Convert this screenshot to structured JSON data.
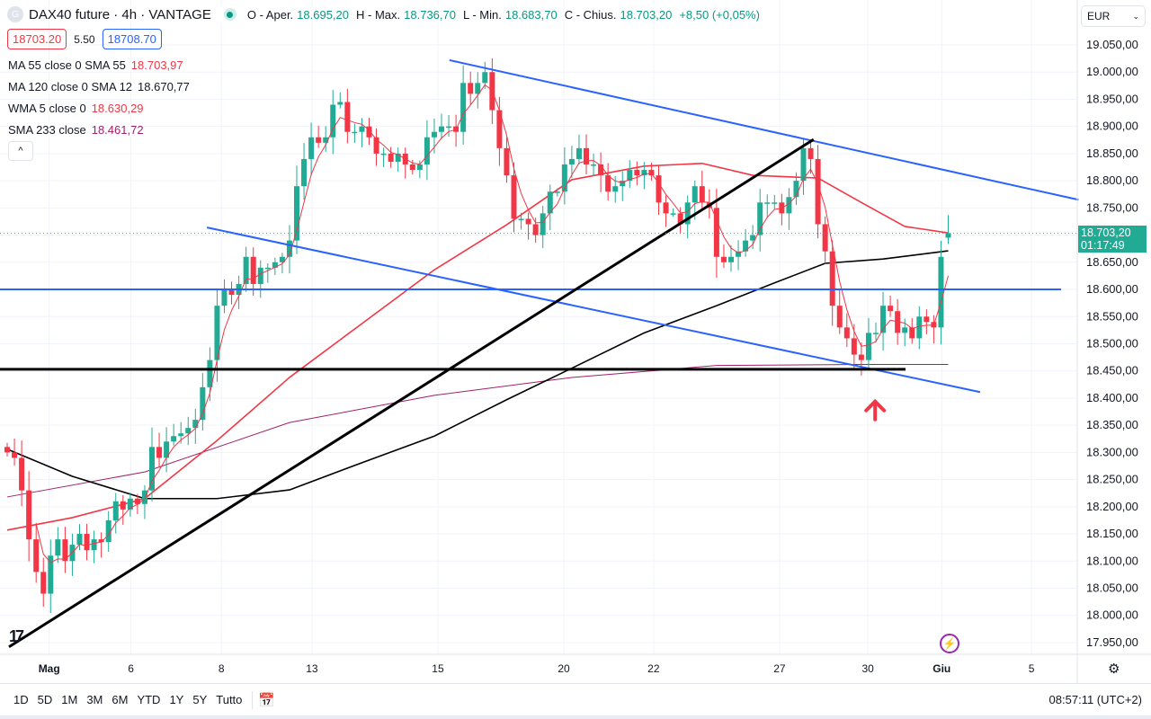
{
  "header": {
    "symbol_icon": "G",
    "title": "DAX40 future · 4h · VANTAGE",
    "status": "market-open-dot",
    "o_label": "O - Aper.",
    "o": "18.695,20",
    "h_label": "H - Max.",
    "h": "18.736,70",
    "l_label": "L - Min.",
    "l": "18.683,70",
    "c_label": "C - Chius.",
    "c": "18.703,20",
    "change": "+8,50 (+0,05%)"
  },
  "quote": {
    "bid": "18703.20",
    "spread": "5.50",
    "ask": "18708.70"
  },
  "legend": [
    {
      "label": "MA 55 close 0 SMA 55",
      "value": "18.703,97",
      "color": "#f23645"
    },
    {
      "label": "MA 120 close 0 SMA 12",
      "value": "18.670,77",
      "color": "#131722"
    },
    {
      "label": "WMA 5 close 0",
      "value": "18.630,29",
      "color": "#f23645"
    },
    {
      "label": "SMA 233 close",
      "value": "18.461,72",
      "color": "#a0206a"
    }
  ],
  "collapse_icon": "chevron-up",
  "currency": "EUR",
  "price_label": {
    "price": "18.703,20",
    "countdown": "01:17:49"
  },
  "timeframes": [
    "1D",
    "5D",
    "1M",
    "3M",
    "6M",
    "YTD",
    "1Y",
    "5Y",
    "Tutto"
  ],
  "clock": "08:57:11 (UTC+2)",
  "colors": {
    "up": "#22ab94",
    "down": "#f23645",
    "ma55": "#f23645",
    "ma120": "#000000",
    "wma5": "#f23645",
    "sma233": "#a0206a",
    "trend_blue": "#2962ff",
    "trend_black": "#000000"
  },
  "chart_data": {
    "type": "candlestick",
    "ylim": [
      17925,
      19075
    ],
    "y_ticks": [
      "19.050,00",
      "19.000,00",
      "18.950,00",
      "18.900,00",
      "18.850,00",
      "18.800,00",
      "18.750,00",
      "18.650,00",
      "18.600,00",
      "18.550,00",
      "18.500,00",
      "18.450,00",
      "18.400,00",
      "18.350,00",
      "18.300,00",
      "18.250,00",
      "18.200,00",
      "18.150,00",
      "18.100,00",
      "18.050,00",
      "18.000,00",
      "17.950,00"
    ],
    "x_ticks": [
      {
        "label": "Mag",
        "bar": 5.8
      },
      {
        "label": "6",
        "bar": 17.1
      },
      {
        "label": "8",
        "bar": 29.6
      },
      {
        "label": "13",
        "bar": 42.1
      },
      {
        "label": "15",
        "bar": 59.5
      },
      {
        "label": "20",
        "bar": 76.9
      },
      {
        "label": "22",
        "bar": 89.3
      },
      {
        "label": "27",
        "bar": 106.7
      },
      {
        "label": "30",
        "bar": 118.9
      },
      {
        "label": "Giu",
        "bar": 129.1
      },
      {
        "label": "5",
        "bar": 141.5
      }
    ],
    "closes": [
      18300,
      18290,
      18230,
      18140,
      18080,
      18040,
      18110,
      18140,
      18100,
      18130,
      18150,
      18120,
      18140,
      18135,
      18175,
      18210,
      18195,
      18215,
      18205,
      18230,
      18310,
      18290,
      18320,
      18330,
      18335,
      18345,
      18360,
      18420,
      18470,
      18570,
      18600,
      18590,
      18610,
      18660,
      18610,
      18640,
      18640,
      18650,
      18660,
      18690,
      18790,
      18840,
      18880,
      18870,
      18880,
      18940,
      18945,
      18890,
      18890,
      18900,
      18880,
      18850,
      18850,
      18835,
      18850,
      18830,
      18820,
      18830,
      18880,
      18890,
      18900,
      18900,
      18890,
      18980,
      18960,
      18980,
      19000,
      18930,
      18860,
      18810,
      18730,
      18730,
      18720,
      18700,
      18740,
      18780,
      18780,
      18830,
      18840,
      18860,
      18830,
      18830,
      18810,
      18780,
      18790,
      18800,
      18820,
      18810,
      18820,
      18810,
      18760,
      18740,
      18740,
      18720,
      18760,
      18790,
      18760,
      18750,
      18660,
      18650,
      18660,
      18670,
      18690,
      18700,
      18760,
      18760,
      18760,
      18740,
      18770,
      18800,
      18860,
      18840,
      18720,
      18670,
      18570,
      18530,
      18510,
      18480,
      18470,
      18520,
      18520,
      18570,
      18560,
      18520,
      18530,
      18510,
      18550,
      18540,
      18530,
      18660,
      18703.2
    ],
    "last_bar": {
      "open": 18695.2,
      "high": 18736.7,
      "low": 18683.7,
      "close": 18703.2
    },
    "indicators": {
      "ma55": [
        [
          0,
          18157
        ],
        [
          9,
          18180
        ],
        [
          19,
          18215
        ],
        [
          29,
          18322
        ],
        [
          39,
          18438
        ],
        [
          49,
          18537
        ],
        [
          59,
          18636
        ],
        [
          69,
          18719
        ],
        [
          78,
          18802
        ],
        [
          88,
          18827
        ],
        [
          96,
          18832
        ],
        [
          103,
          18810
        ],
        [
          112,
          18805
        ],
        [
          118,
          18760
        ],
        [
          124,
          18716
        ],
        [
          130,
          18704
        ]
      ],
      "ma120": [
        [
          0,
          18306
        ],
        [
          9,
          18256
        ],
        [
          19,
          18215
        ],
        [
          29,
          18215
        ],
        [
          39,
          18231
        ],
        [
          49,
          18281
        ],
        [
          59,
          18330
        ],
        [
          69,
          18397
        ],
        [
          78,
          18455
        ],
        [
          88,
          18520
        ],
        [
          98,
          18570
        ],
        [
          106,
          18612
        ],
        [
          113,
          18648
        ],
        [
          121,
          18656
        ],
        [
          130,
          18671
        ]
      ],
      "sma233": [
        [
          0,
          18218
        ],
        [
          19,
          18264
        ],
        [
          39,
          18355
        ],
        [
          59,
          18405
        ],
        [
          78,
          18438
        ],
        [
          98,
          18460
        ],
        [
          118,
          18462
        ],
        [
          130,
          18462
        ]
      ]
    },
    "drawings": [
      {
        "name": "upper-channel-line",
        "color": "#2962ff",
        "from": [
          61.1,
          19022
        ],
        "to": [
          148,
          18765
        ]
      },
      {
        "name": "lower-channel-line",
        "color": "#2962ff",
        "from": [
          27.6,
          18714
        ],
        "to": [
          134.4,
          18411
        ]
      },
      {
        "name": "horizontal-level-18600",
        "color": "#2962ff",
        "from": [
          -1,
          18600
        ],
        "to": [
          145.6,
          18600
        ]
      },
      {
        "name": "horizontal-support-18453",
        "color": "#000000",
        "from": [
          -1,
          18453
        ],
        "to": [
          124.1,
          18453
        ]
      },
      {
        "name": "rising-trendline",
        "color": "#000000",
        "from": [
          0.25,
          17942
        ],
        "to": [
          111.4,
          18876
        ]
      }
    ],
    "arrow": {
      "bar": 119.9,
      "price": 18397,
      "color": "#f23645"
    },
    "current_price": 18703.2
  }
}
